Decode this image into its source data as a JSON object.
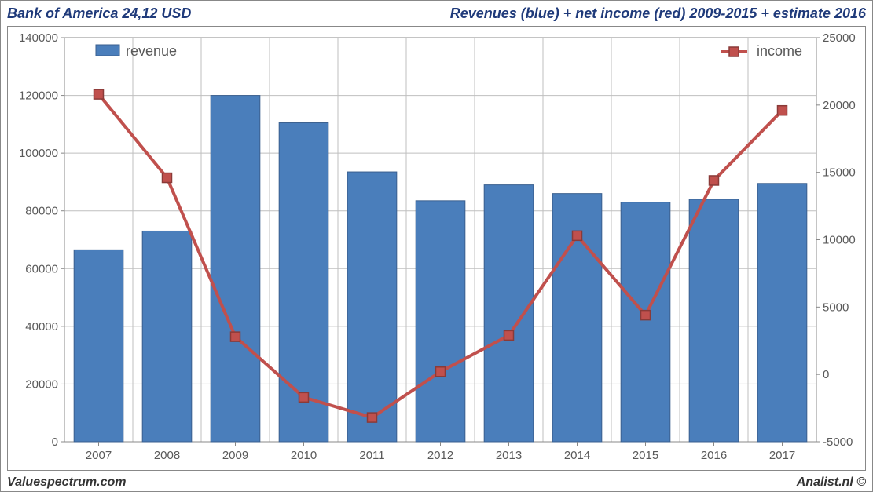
{
  "header": {
    "left_title": "Bank of America 24,12 USD",
    "right_title": "Revenues (blue) + net income (red) 2009-2015 + estimate 2016"
  },
  "footer": {
    "left": "Valuespectrum.com",
    "right": "Analist.nl ©"
  },
  "chart": {
    "type": "combo-bar-line",
    "background_color": "#ffffff",
    "grid_color": "#bfbfbf",
    "border_color": "#888888",
    "bar_color": "#4a7ebb",
    "bar_border_color": "#3a5f8f",
    "line_color": "#c0504d",
    "marker_color": "#c0504d",
    "marker_border_color": "#8a3a38",
    "axis_label_color": "#595959",
    "line_width": 4,
    "marker_size": 12,
    "bar_width_ratio": 0.72,
    "categories": [
      "2007",
      "2008",
      "2009",
      "2010",
      "2011",
      "2012",
      "2013",
      "2014",
      "2015",
      "2016",
      "2017"
    ],
    "revenue_values": [
      66500,
      73000,
      120000,
      110500,
      93500,
      83500,
      89000,
      86000,
      83000,
      84000,
      89500
    ],
    "income_values": [
      20800,
      14600,
      2800,
      -1700,
      -3200,
      200,
      2900,
      10300,
      4400,
      14400,
      19600
    ],
    "y_left": {
      "min": 0,
      "max": 140000,
      "step": 20000,
      "labels": [
        "0",
        "20000",
        "40000",
        "60000",
        "80000",
        "100000",
        "120000",
        "140000"
      ]
    },
    "y_right": {
      "min": -5000,
      "max": 25000,
      "step": 5000,
      "labels": [
        "-5000",
        "0",
        "5000",
        "10000",
        "15000",
        "20000",
        "25000"
      ]
    },
    "legend": {
      "revenue_label": "revenue",
      "income_label": "income"
    }
  }
}
